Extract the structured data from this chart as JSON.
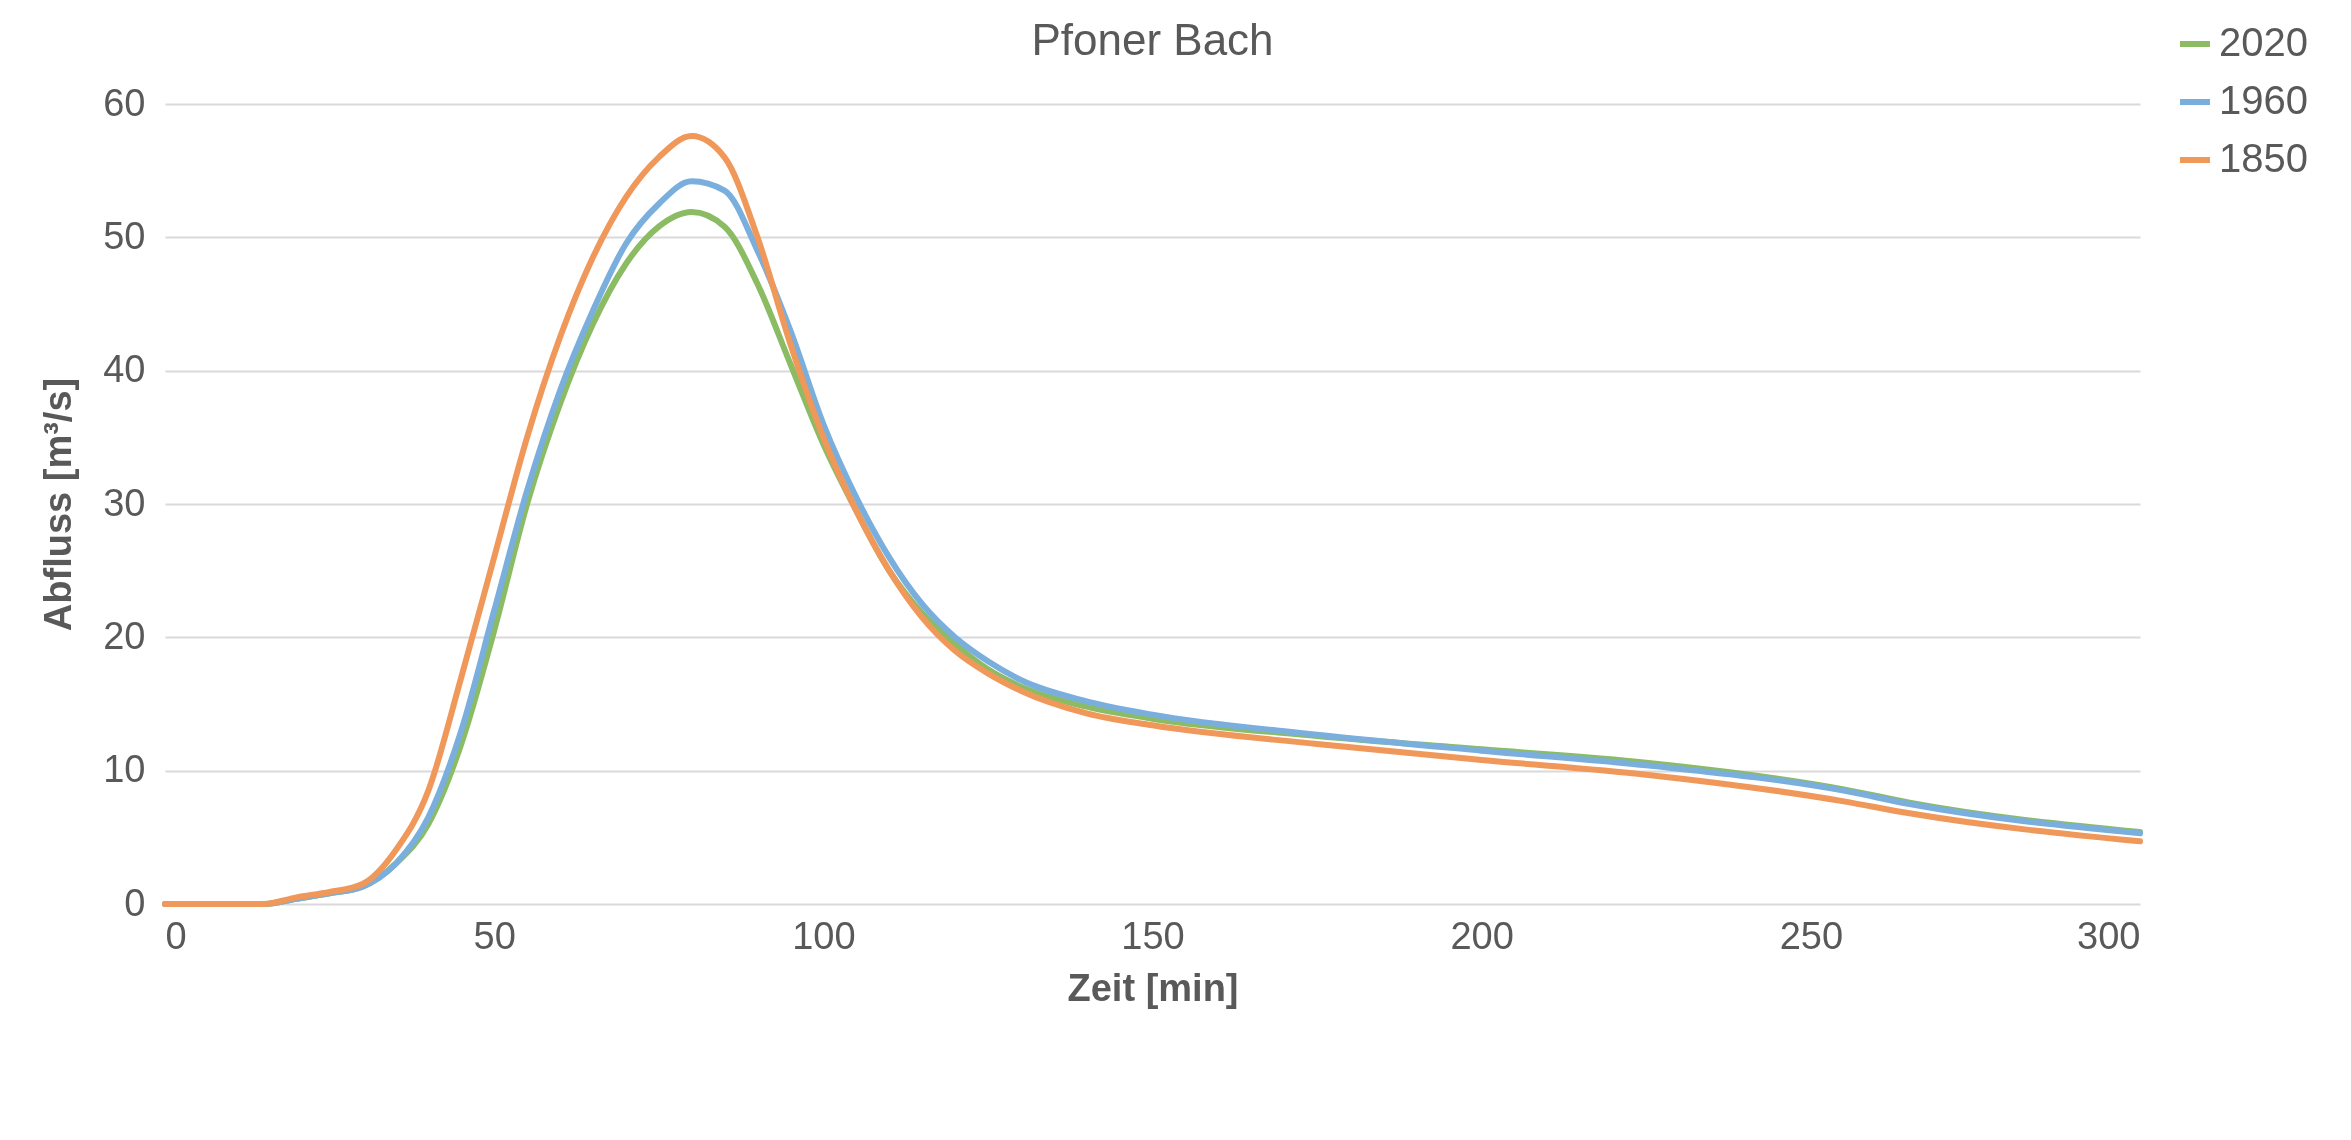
{
  "chart_data": {
    "type": "line",
    "title": "Pfoner Bach",
    "xlabel": "Zeit [min]",
    "ylabel": "Abfluss [m³/s]",
    "xlim": [
      0,
      300
    ],
    "xticks": [
      0,
      50,
      100,
      150,
      200,
      250,
      300
    ],
    "ylim": [
      0,
      60
    ],
    "yticks": [
      0,
      10,
      20,
      30,
      40,
      50,
      60
    ],
    "grid": "y",
    "legend": "top right",
    "line_style": "solid",
    "marker": "none",
    "x": [
      0,
      10,
      15,
      20,
      25,
      30,
      35,
      40,
      45,
      50,
      55,
      60,
      65,
      70,
      75,
      80,
      85,
      90,
      95,
      100,
      105,
      110,
      115,
      120,
      125,
      130,
      140,
      150,
      175,
      200,
      225,
      255,
      265,
      300
    ],
    "series": [
      {
        "name": "2020",
        "color": "#8bbc64",
        "values": [
          0,
          0,
          0,
          0.4,
          0.8,
          1.3,
          3,
          6,
          12,
          20.5,
          30,
          37.5,
          43.5,
          48,
          50.8,
          51.9,
          50.8,
          46.5,
          40.5,
          34.5,
          29.5,
          25,
          21.8,
          19.5,
          17.6,
          16.3,
          14.8,
          13.9,
          12.6,
          11.6,
          10.6,
          8.6,
          7.6,
          5.4
        ]
      },
      {
        "name": "1960",
        "color": "#7aaedc",
        "values": [
          0,
          0,
          0,
          0.4,
          0.8,
          1.3,
          3,
          6.5,
          13,
          22,
          31,
          38.5,
          44.5,
          49.5,
          52.5,
          54.2,
          53.5,
          49,
          43,
          36,
          30.5,
          26,
          22.5,
          20,
          18.2,
          16.8,
          15.2,
          14.2,
          12.7,
          11.5,
          10.4,
          8.5,
          7.5,
          5.3
        ]
      },
      {
        "name": "1850",
        "color": "#f0975a",
        "values": [
          0,
          0,
          0,
          0.5,
          0.9,
          1.5,
          4,
          8.5,
          17,
          26,
          35,
          42.5,
          48.5,
          53,
          56,
          57.6,
          56,
          50,
          42,
          35,
          29.5,
          25,
          21.5,
          19,
          17.3,
          16,
          14.3,
          13.4,
          12,
          10.8,
          9.7,
          7.7,
          6.8,
          4.7
        ]
      }
    ]
  }
}
